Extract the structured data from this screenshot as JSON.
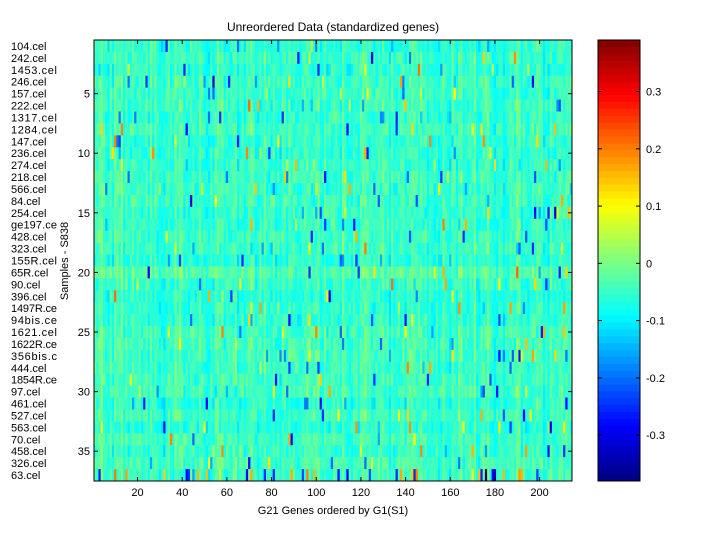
{
  "chart_data": {
    "type": "heatmap",
    "title": "Unreordered Data (standardized genes)",
    "xlabel": "G21 Genes ordered by G1(S1)",
    "ylabel": "Samples - S838",
    "x_range": [
      1,
      214
    ],
    "y_range": [
      1,
      37
    ],
    "x_ticks": [
      20,
      40,
      60,
      80,
      100,
      120,
      140,
      160,
      180,
      200
    ],
    "y_ticks": [
      5,
      10,
      15,
      20,
      25,
      30,
      35
    ],
    "sample_labels": [
      "104.cel",
      "242.cel",
      "1453.cel",
      "246.cel",
      "157.cel",
      "222.cel",
      "1317.cel",
      "1284.cel",
      "147.cel",
      "236.cel",
      "274.cel",
      "218.cel",
      "566.cel",
      "84.cel",
      "254.cel",
      "ge197.ce",
      "428.cel",
      "323.cel",
      "155R.cel",
      "65R.cel",
      "90.cel",
      "396.cel",
      "1497R.ce",
      "94bis.ce",
      "1621.cel",
      "1622R.ce",
      "356bis.c",
      "444.cel",
      "1854R.ce",
      "97.cel",
      "461.cel",
      "527.cel",
      "563.cel",
      "70.cel",
      "458.cel",
      "326.cel",
      "63.cel"
    ],
    "colorbar": {
      "colormap": "jet",
      "min": -0.38,
      "max": 0.39,
      "ticks": [
        -0.3,
        -0.2,
        -0.1,
        0,
        0.1,
        0.2,
        0.3
      ]
    }
  }
}
